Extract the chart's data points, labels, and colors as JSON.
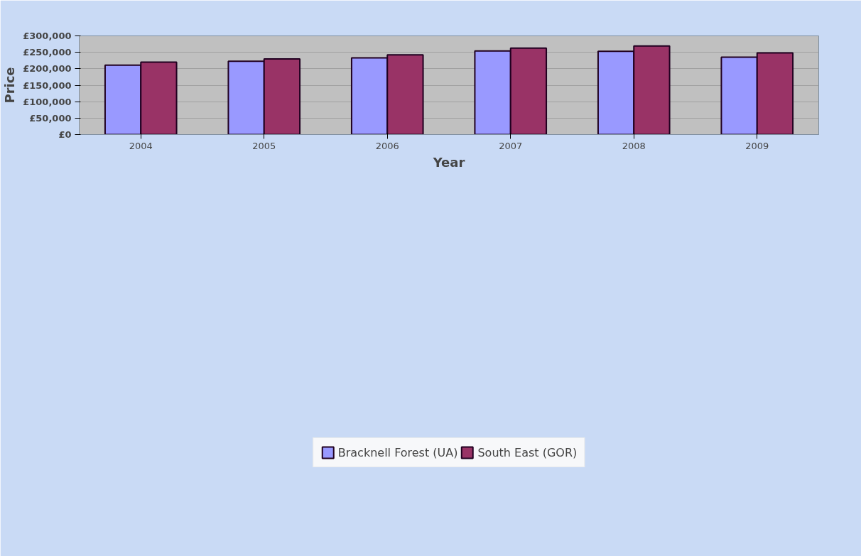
{
  "chart_data": {
    "type": "bar",
    "xlabel": "Year",
    "ylabel": "Price",
    "categories": [
      "2004",
      "2005",
      "2006",
      "2007",
      "2008",
      "2009"
    ],
    "series": [
      {
        "name": "Bracknell Forest (UA)",
        "color": "#9999ff",
        "values": [
          211000,
          223000,
          233000,
          254000,
          253000,
          235000
        ]
      },
      {
        "name": "South East (GOR)",
        "color": "#993366",
        "values": [
          220000,
          230000,
          242000,
          263000,
          269000,
          248000
        ]
      }
    ],
    "ylim": [
      0,
      300000
    ],
    "yticks": [
      {
        "value": 0,
        "label": "£0"
      },
      {
        "value": 50000,
        "label": "£50,000"
      },
      {
        "value": 100000,
        "label": "£100,000"
      },
      {
        "value": 150000,
        "label": "£150,000"
      },
      {
        "value": 200000,
        "label": "£200,000"
      },
      {
        "value": 250000,
        "label": "£250,000"
      },
      {
        "value": 300000,
        "label": "£300,000"
      }
    ],
    "grid": "y",
    "legend": "bottom"
  }
}
